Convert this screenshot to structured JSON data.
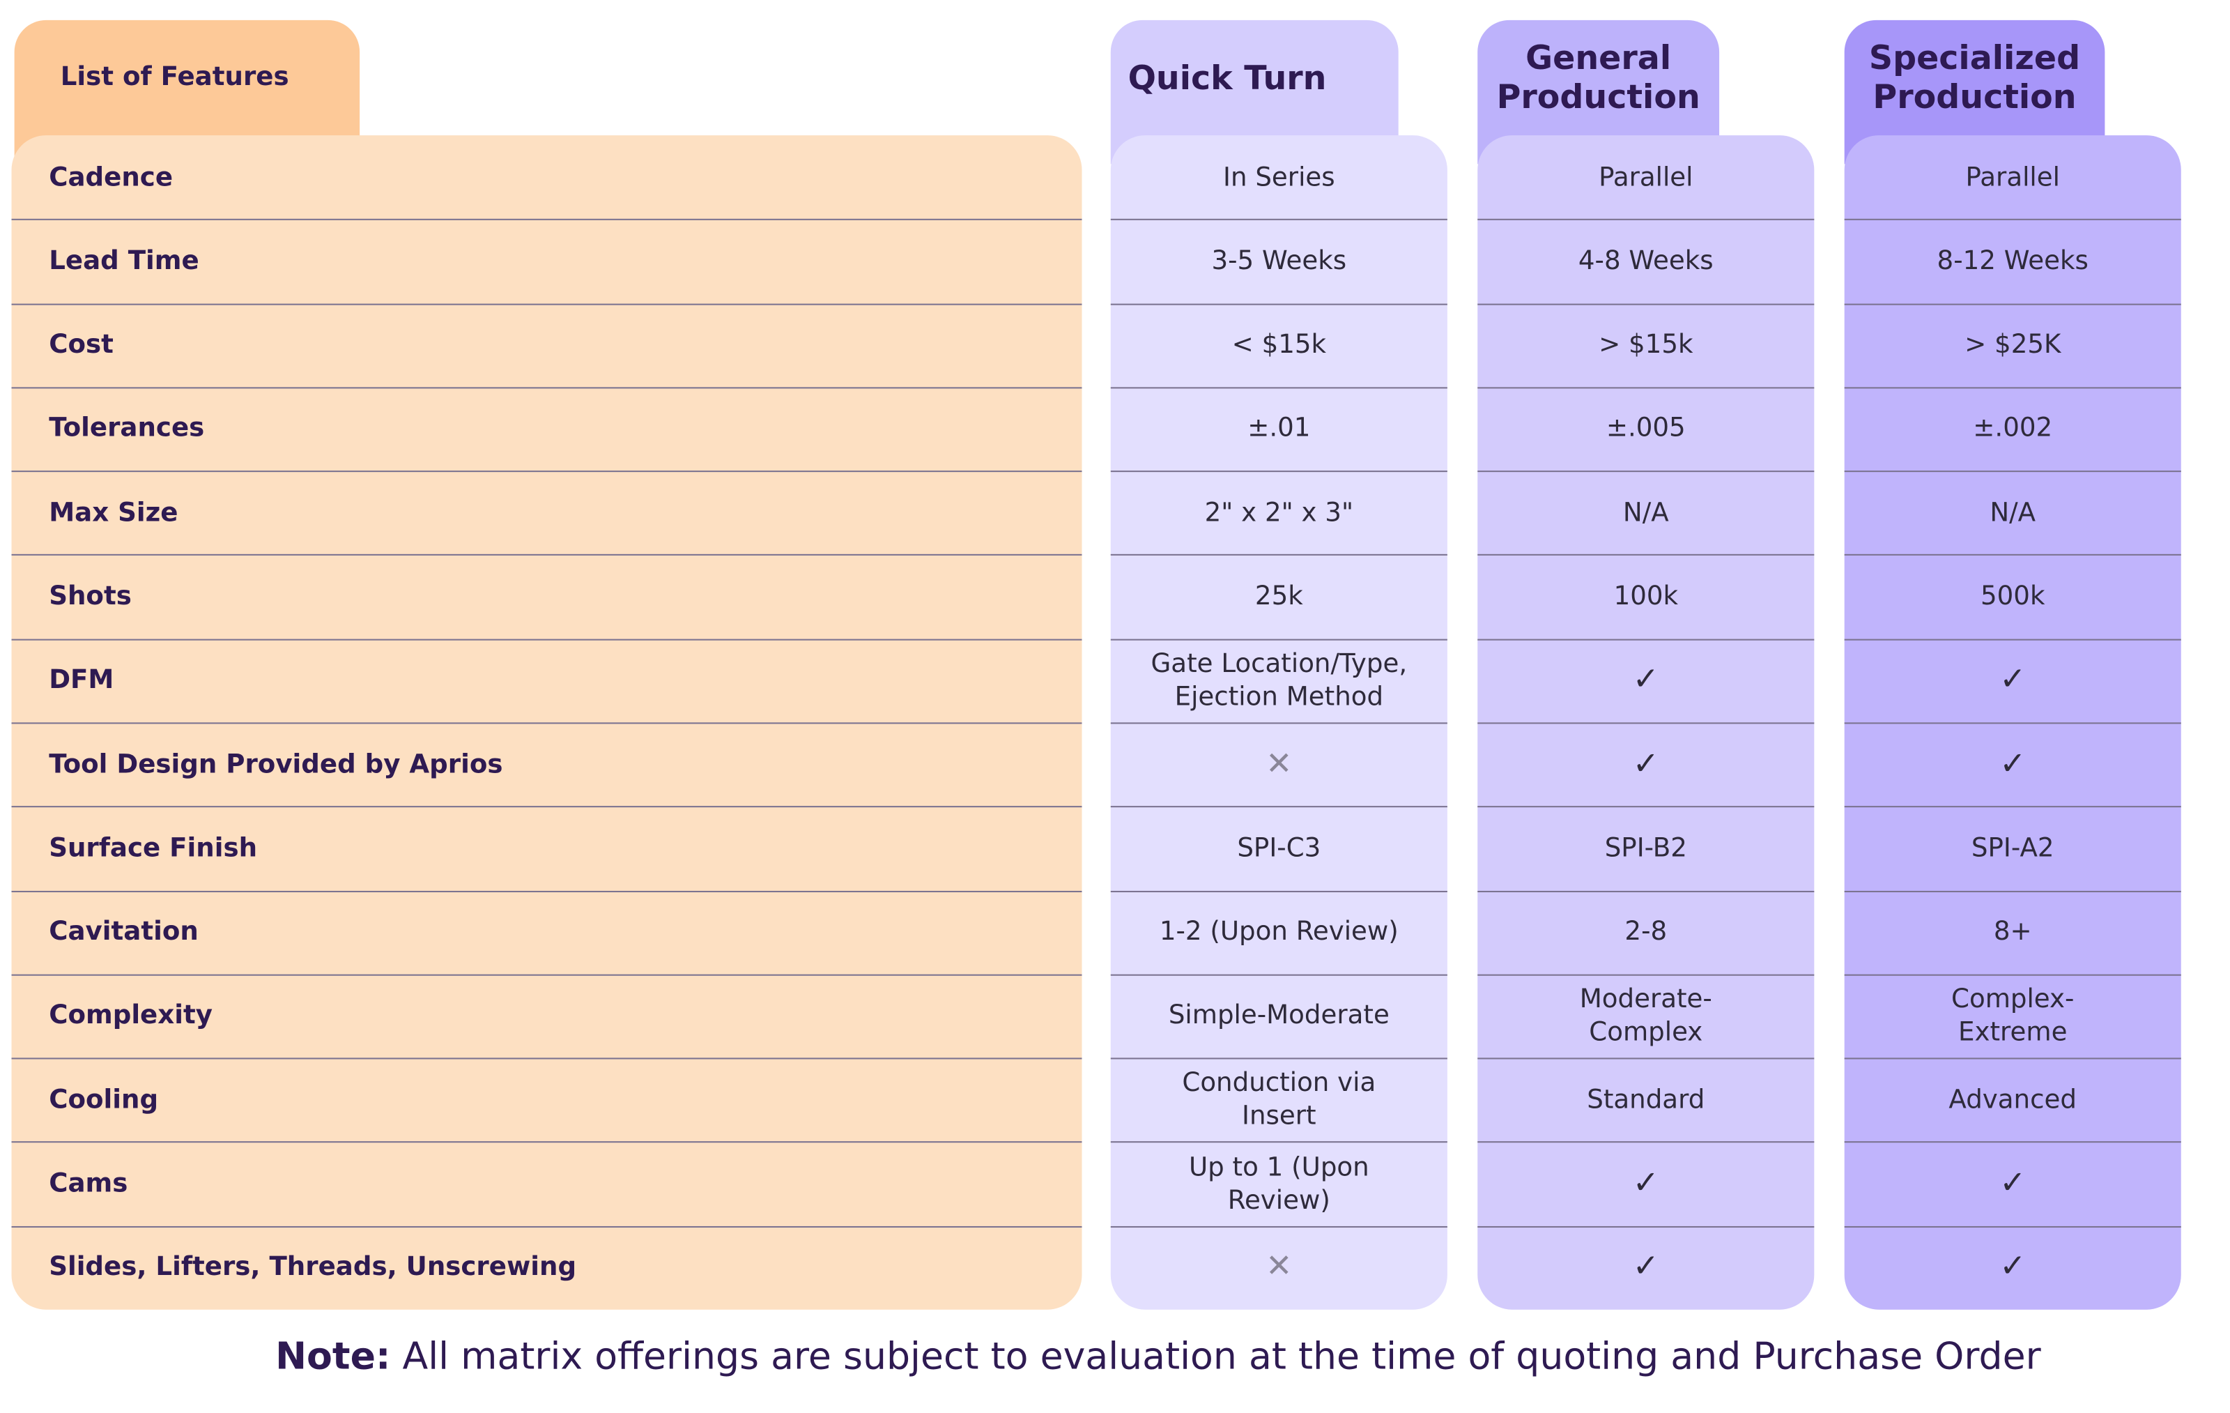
{
  "header": {
    "title": "List of Features",
    "columns": [
      "Quick Turn",
      "General Production",
      "Specialized Production"
    ]
  },
  "rows": [
    {
      "feature": "Cadence",
      "values": [
        "In Series",
        "Parallel",
        "Parallel"
      ]
    },
    {
      "feature": "Lead Time",
      "values": [
        "3-5 Weeks",
        "4-8 Weeks",
        "8-12 Weeks"
      ]
    },
    {
      "feature": "Cost",
      "values": [
        "< $15k",
        "> $15k",
        "> $25K"
      ]
    },
    {
      "feature": "Tolerances",
      "values": [
        "±.01",
        "±.005",
        "±.002"
      ]
    },
    {
      "feature": "Max Size",
      "values": [
        "2\" x 2\" x 3\"",
        "N/A",
        "N/A"
      ]
    },
    {
      "feature": "Shots",
      "values": [
        "25k",
        "100k",
        "500k"
      ]
    },
    {
      "feature": "DFM",
      "values": [
        "Gate Location/Type, Ejection Method",
        "✓",
        "✓"
      ]
    },
    {
      "feature": "Tool Design Provided by Aprios",
      "values": [
        "✕",
        "✓",
        "✓"
      ]
    },
    {
      "feature": "Surface Finish",
      "values": [
        "SPI-C3",
        "SPI-B2",
        "SPI-A2"
      ]
    },
    {
      "feature": "Cavitation",
      "values": [
        "1-2 (Upon Review)",
        "2-8",
        "8+"
      ]
    },
    {
      "feature": "Complexity",
      "values": [
        "Simple-Moderate",
        "Moderate-Complex",
        "Complex-Extreme"
      ]
    },
    {
      "feature": "Cooling",
      "values": [
        "Conduction via Insert",
        "Standard",
        "Advanced"
      ]
    },
    {
      "feature": "Cams",
      "values": [
        "Up to 1 (Upon Review)",
        "✓",
        "✓"
      ]
    },
    {
      "feature": "Slides, Lifters, Threads, Unscrewing",
      "values": [
        "✕",
        "✓",
        "✓"
      ]
    }
  ],
  "note": {
    "label": "Note:",
    "text": "All matrix offerings are subject to evaluation at the time of quoting and Purchase Order"
  }
}
